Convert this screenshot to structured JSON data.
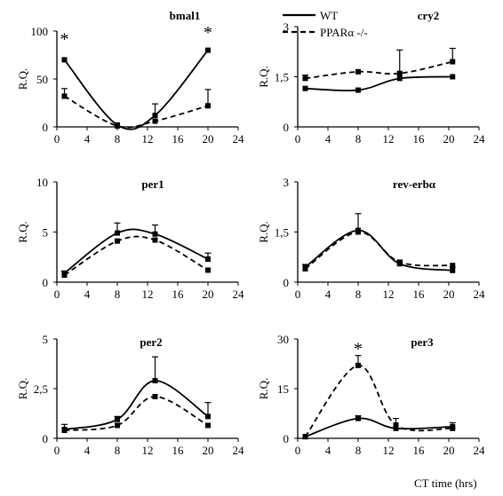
{
  "chart_data": [
    {
      "type": "line",
      "title": "bmal1",
      "ylabel": "R.Q.",
      "xlim": [
        0,
        24
      ],
      "ylim": [
        0,
        100
      ],
      "xticks": [
        "0",
        "4",
        "8",
        "12",
        "16",
        "20",
        "24"
      ],
      "yticks": [
        "0",
        "50",
        "100"
      ],
      "series": [
        {
          "name": "WT",
          "style": "solid",
          "x": [
            1,
            8,
            13,
            20
          ],
          "y": [
            70,
            2,
            12,
            80
          ],
          "err": [
            0,
            0,
            12,
            0
          ]
        },
        {
          "name": "PPARα -/-",
          "style": "dashed",
          "x": [
            1,
            8,
            13,
            20
          ],
          "y": [
            32,
            1,
            6,
            22
          ],
          "err": [
            8,
            0,
            0,
            17
          ]
        }
      ],
      "significance": [
        {
          "x": 1,
          "y": 93
        },
        {
          "x": 20,
          "y": 100
        }
      ]
    },
    {
      "type": "line",
      "title": "cry2",
      "ylabel": "R.Q.",
      "xlim": [
        0,
        24
      ],
      "ylim": [
        0,
        3
      ],
      "xticks": [
        "0",
        "4",
        "8",
        "12",
        "16",
        "20",
        "24"
      ],
      "yticks": [
        "0",
        "1,5",
        "3"
      ],
      "series": [
        {
          "name": "WT",
          "style": "solid",
          "x": [
            1,
            8,
            13.5,
            20.5
          ],
          "y": [
            1.15,
            1.1,
            1.45,
            1.5
          ],
          "err": [
            0,
            0,
            0,
            0
          ]
        },
        {
          "name": "PPARα -/-",
          "style": "dashed",
          "x": [
            1,
            8,
            13.5,
            20.5
          ],
          "y": [
            1.45,
            1.65,
            1.6,
            1.95
          ],
          "err": [
            0.1,
            0,
            0.7,
            0.4
          ]
        }
      ],
      "legend": {
        "position": "top-left",
        "entries": [
          "WT",
          "PPARα -/-"
        ]
      }
    },
    {
      "type": "line",
      "title": "per1",
      "ylabel": "R.Q.",
      "xlim": [
        0,
        24
      ],
      "ylim": [
        0,
        10
      ],
      "xticks": [
        "0",
        "4",
        "8",
        "12",
        "16",
        "20",
        "24"
      ],
      "yticks": [
        "0",
        "5",
        "10"
      ],
      "series": [
        {
          "name": "WT",
          "style": "solid",
          "x": [
            1,
            8,
            13,
            20
          ],
          "y": [
            0.9,
            4.9,
            4.8,
            2.3
          ],
          "err": [
            0.2,
            1.0,
            0.9,
            0.6
          ]
        },
        {
          "name": "PPARα -/-",
          "style": "dashed",
          "x": [
            1,
            8,
            13,
            20
          ],
          "y": [
            0.7,
            4.1,
            4.2,
            1.2
          ],
          "err": [
            0,
            0,
            0,
            0
          ]
        }
      ]
    },
    {
      "type": "line",
      "title": "rev-erbα",
      "ylabel": "R.Q.",
      "xlim": [
        0,
        24
      ],
      "ylim": [
        0,
        3
      ],
      "xticks": [
        "0",
        "4",
        "8",
        "12",
        "16",
        "20",
        "24"
      ],
      "yticks": [
        "0",
        "1,5",
        "3"
      ],
      "series": [
        {
          "name": "WT",
          "style": "solid",
          "x": [
            1,
            8,
            13.5,
            20.5
          ],
          "y": [
            0.45,
            1.55,
            0.55,
            0.35
          ],
          "err": [
            0.08,
            0.5,
            0.1,
            0.1
          ]
        },
        {
          "name": "PPARα -/-",
          "style": "dashed",
          "x": [
            1,
            8,
            13.5,
            20.5
          ],
          "y": [
            0.4,
            1.5,
            0.6,
            0.5
          ],
          "err": [
            0,
            0,
            0,
            0
          ]
        }
      ]
    },
    {
      "type": "line",
      "title": "per2",
      "ylabel": "R.Q.",
      "xlim": [
        0,
        24
      ],
      "ylim": [
        0,
        5
      ],
      "xticks": [
        "0",
        "4",
        "8",
        "12",
        "16",
        "20",
        "24"
      ],
      "yticks": [
        "0",
        "2,5",
        "5"
      ],
      "series": [
        {
          "name": "WT",
          "style": "solid",
          "x": [
            1,
            8,
            13,
            20
          ],
          "y": [
            0.45,
            0.95,
            2.9,
            1.1
          ],
          "err": [
            0.25,
            0.15,
            1.2,
            0.7
          ]
        },
        {
          "name": "PPARα -/-",
          "style": "dashed",
          "x": [
            1,
            8,
            13,
            20
          ],
          "y": [
            0.4,
            0.65,
            2.1,
            0.65
          ],
          "err": [
            0,
            0,
            0,
            0
          ]
        }
      ]
    },
    {
      "type": "line",
      "title": "per3",
      "ylabel": "R.Q.",
      "xlim": [
        0,
        24
      ],
      "ylim": [
        0,
        30
      ],
      "xticks": [
        "0",
        "4",
        "8",
        "12",
        "16",
        "20",
        "24"
      ],
      "yticks": [
        "0",
        "15",
        "30"
      ],
      "series": [
        {
          "name": "WT",
          "style": "solid",
          "x": [
            1,
            8,
            13,
            20.5
          ],
          "y": [
            0.5,
            6,
            3,
            3.5
          ],
          "err": [
            0,
            0.8,
            0,
            1.2
          ]
        },
        {
          "name": "PPARα -/-",
          "style": "dashed",
          "x": [
            1,
            8,
            13,
            20.5
          ],
          "y": [
            0.5,
            22,
            4,
            3
          ],
          "err": [
            0,
            3,
            2,
            0
          ]
        }
      ],
      "significance": [
        {
          "x": 8,
          "y": 27.5
        }
      ],
      "xlabel": "CT time (hrs)"
    }
  ]
}
